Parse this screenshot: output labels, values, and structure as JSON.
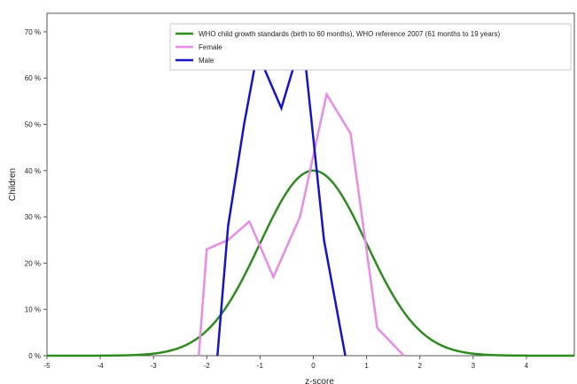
{
  "chart_data": {
    "type": "line",
    "xlabel": "z-score",
    "ylabel": "Children",
    "xlim": [
      -5,
      4.9
    ],
    "ylim": [
      0,
      74
    ],
    "x_ticks": [
      -5,
      -4,
      -3,
      -2,
      -1,
      0,
      1,
      2,
      3,
      4
    ],
    "y_ticks": [
      0,
      10,
      20,
      30,
      40,
      50,
      60,
      70
    ],
    "y_tick_labels": [
      "0 %",
      "10 %",
      "20 %",
      "30 %",
      "40 %",
      "50 %",
      "60 %",
      "70 %"
    ],
    "grid": false,
    "legend_position": "top-right",
    "series": [
      {
        "name": "WHO child growth standards (birth to 60 months), WHO reference 2007 (61 months to 19 years)",
        "color": "#2e8b1e",
        "curve": "normal",
        "mean": 0,
        "sd": 1,
        "peak": 40
      },
      {
        "name": "Female",
        "color": "#e98be8",
        "x": [
          -2.15,
          -2.0,
          -1.6,
          -1.2,
          -0.75,
          -0.25,
          0.25,
          0.7,
          1.2,
          1.7
        ],
        "y": [
          0,
          23,
          25,
          29,
          17,
          30,
          56.5,
          48,
          6,
          0
        ]
      },
      {
        "name": "Male",
        "color": "#1414cc",
        "x": [
          -1.8,
          -1.6,
          -1.3,
          -1.05,
          -0.6,
          -0.2,
          0.2,
          0.6
        ],
        "y": [
          0,
          28,
          50,
          65.5,
          53.5,
          69,
          25,
          0
        ]
      }
    ]
  }
}
